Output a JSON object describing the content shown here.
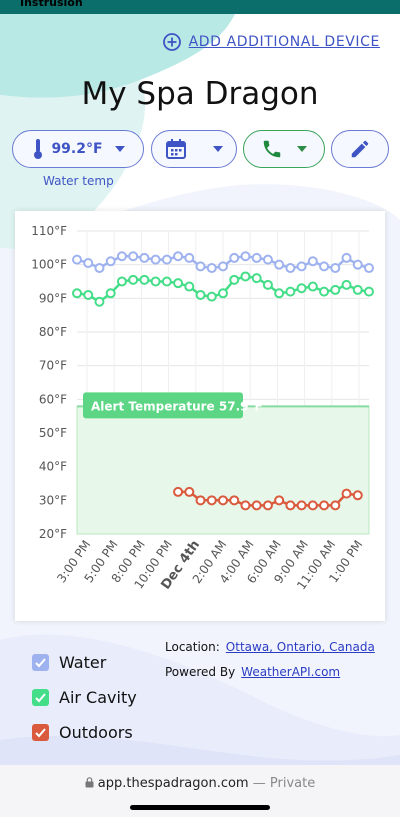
{
  "header": {
    "cut_text": "Instrusion",
    "add_device_label": "ADD ADDITIONAL DEVICE",
    "title": "My Spa Dragon"
  },
  "controls": {
    "temp_value": "99.2°F",
    "temp_caption": "Water temp"
  },
  "chart_data": {
    "type": "line",
    "ylim": [
      20,
      110
    ],
    "y_ticks": [
      "110°F",
      "100°F",
      "90°F",
      "80°F",
      "70°F",
      "60°F",
      "50°F",
      "40°F",
      "30°F",
      "20°F"
    ],
    "x_ticks": [
      "3:00 PM",
      "5:00 PM",
      "8:00 PM",
      "10:00 PM",
      "Dec 4th",
      "2:00 AM",
      "4:00 AM",
      "6:00 AM",
      "9:00 AM",
      "11:00 AM",
      "1:00 PM"
    ],
    "alert": {
      "label": "Alert Temperature 57.9°F",
      "value": 57.9
    },
    "series": [
      {
        "name": "Water",
        "color": "#9eb2ef",
        "values": [
          101.5,
          100.5,
          99,
          101,
          102.5,
          102.5,
          102,
          101.5,
          101.5,
          102.5,
          102,
          99.5,
          99,
          99.5,
          102,
          102.5,
          102,
          101.5,
          100,
          99,
          99.5,
          101,
          99.5,
          99,
          102,
          100,
          99
        ]
      },
      {
        "name": "Air Cavity",
        "color": "#44dd88",
        "values": [
          91.5,
          91,
          89,
          91.5,
          95,
          95.5,
          95.5,
          95,
          95,
          94.5,
          93.5,
          91,
          90.5,
          91.5,
          95.5,
          96.5,
          96,
          94,
          91.5,
          92,
          93,
          93.5,
          92,
          92.5,
          94,
          92.5,
          92
        ]
      },
      {
        "name": "Outdoors",
        "color": "#d95a3c",
        "start_index": 9,
        "values": [
          32.5,
          32.5,
          30,
          30,
          30,
          30,
          28.5,
          28.5,
          28.5,
          30,
          28.5,
          28.5,
          28.5,
          28.5,
          28.5,
          32,
          31.5
        ]
      }
    ]
  },
  "legend": {
    "items": [
      {
        "label": "Water",
        "color": "#9eb2ef"
      },
      {
        "label": "Air Cavity",
        "color": "#44dd88"
      },
      {
        "label": "Outdoors",
        "color": "#d95a3c"
      }
    ]
  },
  "info": {
    "location_label": "Location:",
    "location_value": "Ottawa, Ontario, Canada",
    "powered_label": "Powered By",
    "powered_value": "WeatherAPI.com"
  },
  "footer": {
    "url": "app.thespadragon.com",
    "private": "— Private"
  }
}
